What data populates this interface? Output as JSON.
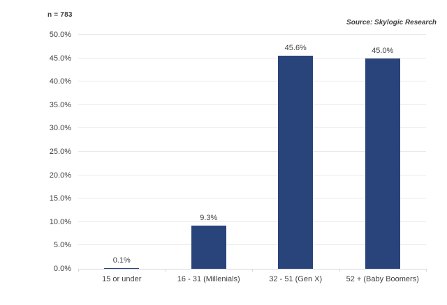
{
  "header": {
    "sample_size_label": "n = 783",
    "source_label": "Source: Skylogic Research"
  },
  "colors": {
    "bar": "#29437B",
    "gridline": "#e9e9e9",
    "axis": "#d6d6d6",
    "text": "#3f3f3f"
  },
  "chart_data": {
    "type": "bar",
    "title": "",
    "xlabel": "",
    "ylabel": "",
    "categories": [
      "15 or under",
      "16 - 31 (Millenials)",
      "32 - 51 (Gen X)",
      "52 + (Baby Boomers)"
    ],
    "values": [
      0.1,
      9.3,
      45.6,
      45.0
    ],
    "data_labels": [
      "0.1%",
      "9.3%",
      "45.6%",
      "45.0%"
    ],
    "ylim": [
      0,
      50
    ],
    "ytick_step": 5,
    "ytick_labels": [
      "0.0%",
      "5.0%",
      "10.0%",
      "15.0%",
      "20.0%",
      "25.0%",
      "30.0%",
      "35.0%",
      "40.0%",
      "45.0%",
      "50.0%"
    ],
    "grid": true,
    "legend": false,
    "annotations": [
      "n = 783",
      "Source: Skylogic Research"
    ]
  }
}
